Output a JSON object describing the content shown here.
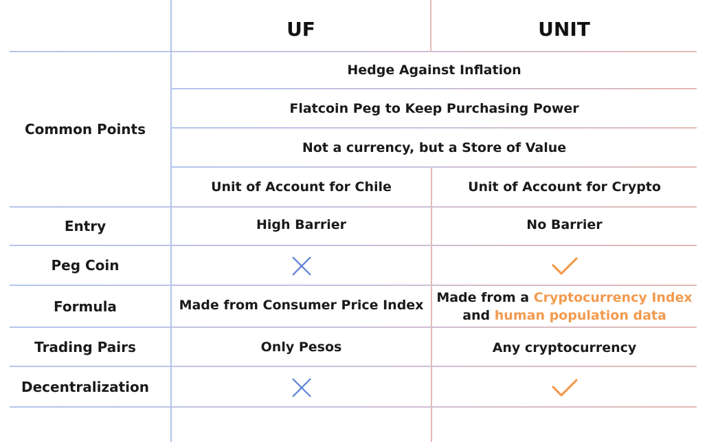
{
  "columns": {
    "uf": "UF",
    "unit": "UNIT"
  },
  "common_points": {
    "label": "Common Points",
    "shared": [
      "Hedge Against Inflation",
      "Flatcoin Peg to Keep Purchasing Power",
      "Not a currency, but a Store of Value"
    ],
    "uf": "Unit of Account for Chile",
    "unit": "Unit of Account for Crypto"
  },
  "rows": {
    "entry": {
      "label": "Entry",
      "uf": "High Barrier",
      "unit": "No Barrier"
    },
    "peg_coin": {
      "label": "Peg Coin",
      "uf_icon": "cross-icon",
      "unit_icon": "check-icon"
    },
    "formula": {
      "label": "Formula",
      "uf": "Made from Consumer Price Index",
      "unit_part1": "Made from a ",
      "unit_highlight1": "Cryptocurrency Index",
      "unit_part2": "and ",
      "unit_highlight2": "human population data"
    },
    "trading_pairs": {
      "label": "Trading Pairs",
      "uf": "Only Pesos",
      "unit": "Any cryptocurrency"
    },
    "decentralization": {
      "label": "Decentralization",
      "uf_icon": "cross-icon",
      "unit_icon": "check-icon"
    }
  },
  "colors": {
    "blue_line": "#b3c4ec",
    "pink_line": "#e4b9b3",
    "cross": "#5b7fd6",
    "check": "#f39a4e",
    "highlight": "#f39a4e"
  }
}
